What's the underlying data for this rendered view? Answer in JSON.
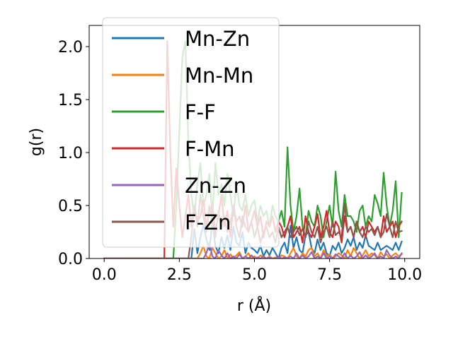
{
  "chart_data": {
    "type": "line",
    "xlabel": "r (Å)",
    "ylabel": "g(r)",
    "xlim": [
      -0.5,
      10.5
    ],
    "ylim": [
      0.0,
      2.2
    ],
    "xticks": [
      0.0,
      2.5,
      5.0,
      7.5,
      10.0
    ],
    "xtick_labels": [
      "0.0",
      "2.5",
      "5.0",
      "7.5",
      "10.0"
    ],
    "yticks": [
      0.0,
      0.5,
      1.0,
      1.5,
      2.0
    ],
    "ytick_labels": [
      "0.0",
      "0.5",
      "1.0",
      "1.5",
      "2.0"
    ],
    "grid": false,
    "legend_position": "upper-left",
    "x_start": 0.0,
    "x_step": 0.1,
    "series": [
      {
        "name": "Mn-Zn",
        "color": "#1f77b4",
        "values": [
          0,
          0,
          0,
          0,
          0,
          0,
          0,
          0,
          0,
          0,
          0,
          0,
          0,
          0,
          0,
          0,
          0,
          0,
          0,
          0,
          0,
          0,
          0,
          0,
          0,
          0,
          0,
          0,
          0,
          0,
          0.28,
          0.05,
          0.2,
          0.32,
          0.18,
          0.08,
          0.35,
          0.12,
          0.05,
          0.2,
          0.1,
          0.22,
          0.08,
          0.3,
          0.15,
          0.12,
          0.25,
          0.05,
          0.15,
          0.1,
          0.08,
          0.05,
          0.12,
          0.02,
          0.08,
          0.03,
          0.1,
          0.05,
          0.0,
          0.1,
          0.15,
          0.05,
          0.31,
          0.1,
          0.2,
          0.08,
          0.05,
          0.22,
          0.25,
          0.1,
          0.05,
          0.18,
          0.08,
          0.15,
          0.05,
          0.02,
          0.12,
          0.08,
          0.15,
          0.05,
          0.1,
          0.18,
          0.12,
          0.2,
          0.08,
          0.15,
          0.1,
          0.22,
          0.12,
          0.1,
          0.08,
          0.15,
          0.08,
          0.1,
          0.12,
          0.1,
          0.08,
          0.15,
          0.08,
          0.16
        ]
      },
      {
        "name": "Mn-Mn",
        "color": "#ff7f0e",
        "values": [
          0,
          0,
          0,
          0,
          0,
          0,
          0,
          0,
          0,
          0,
          0,
          0,
          0,
          0,
          0,
          0,
          0,
          0,
          0,
          0,
          0,
          0,
          0,
          0,
          0,
          0,
          0,
          0,
          0,
          0,
          0,
          0,
          0.05,
          0.12,
          0.02,
          0.0,
          0.1,
          0.05,
          0.0,
          0.02,
          0.08,
          0.0,
          0.04,
          0.0,
          0.03,
          0.06,
          0.0,
          0.02,
          0.05,
          0.0,
          0.02,
          0.0,
          0.03,
          0.01,
          0.0,
          0.02,
          0.0,
          0.01,
          0.0,
          0.03,
          0.02,
          0.0,
          0.05,
          0.1,
          0.02,
          0.0,
          0.05,
          0.02,
          0.08,
          0.1,
          0.02,
          0.05,
          0.0,
          0.08,
          0.02,
          0.04,
          0.0,
          0.02,
          0.05,
          0.03,
          0.0,
          0.08,
          0.02,
          0.1,
          0.05,
          0.0,
          0.03,
          0.08,
          0.02,
          0.05,
          0.03,
          0.0,
          0.06,
          0.02,
          0.04,
          0.0,
          0.03,
          0.05,
          0.02,
          0.04
        ]
      },
      {
        "name": "F-F",
        "color": "#2ca02c",
        "values": [
          0,
          0,
          0,
          0,
          0,
          0,
          0,
          0,
          0,
          0,
          0,
          0,
          0,
          0,
          0,
          0,
          0,
          0,
          0,
          0,
          0,
          0,
          0,
          0,
          0.5,
          1.2,
          1.9,
          2.05,
          1.1,
          0.6,
          0.4,
          0.7,
          0.9,
          0.5,
          0.6,
          0.8,
          0.4,
          0.9,
          0.6,
          0.7,
          0.5,
          0.8,
          0.6,
          0.4,
          0.7,
          0.5,
          0.45,
          0.6,
          0.4,
          0.5,
          0.55,
          0.35,
          0.5,
          0.4,
          0.45,
          0.3,
          0.5,
          0.4,
          0.35,
          0.45,
          0.3,
          1.05,
          0.5,
          0.25,
          0.4,
          0.66,
          0.3,
          0.2,
          0.45,
          0.35,
          0.3,
          0.5,
          0.4,
          0.2,
          0.35,
          0.5,
          0.3,
          0.82,
          0.45,
          0.3,
          0.6,
          0.4,
          0.4,
          0.35,
          0.25,
          0.45,
          0.5,
          0.3,
          0.4,
          0.35,
          0.6,
          0.52,
          0.4,
          0.81,
          0.5,
          0.3,
          0.45,
          0.73,
          0.2,
          0.62
        ]
      },
      {
        "name": "F-Mn",
        "color": "#d62728",
        "values": [
          0,
          0,
          0,
          0,
          0,
          0,
          0,
          0,
          0,
          0,
          0,
          0,
          0,
          0,
          0,
          0,
          0,
          0,
          0,
          0,
          0,
          2.05,
          1.0,
          0.3,
          0.85,
          0.5,
          0.2,
          0.4,
          0.6,
          0.3,
          0.5,
          0.35,
          0.4,
          0.55,
          0.3,
          0.45,
          0.5,
          0.25,
          0.4,
          0.6,
          0.3,
          0.45,
          0.2,
          0.5,
          0.35,
          0.4,
          0.3,
          0.5,
          0.25,
          0.35,
          0.45,
          0.3,
          0.4,
          0.2,
          0.35,
          0.3,
          0.4,
          0.25,
          0.35,
          0.3,
          0.2,
          0.3,
          0.4,
          0.2,
          0.25,
          0.3,
          0.15,
          0.4,
          0.25,
          0.2,
          0.3,
          0.42,
          0.2,
          0.3,
          0.45,
          0.25,
          0.2,
          0.35,
          0.3,
          0.15,
          0.4,
          0.25,
          0.3,
          0.2,
          0.35,
          0.25,
          0.3,
          0.2,
          0.35,
          0.3,
          0.25,
          0.3,
          0.2,
          0.4,
          0.25,
          0.3,
          0.35,
          0.2,
          0.3,
          0.35
        ]
      },
      {
        "name": "Zn-Zn",
        "color": "#9467bd",
        "values": [
          0,
          0,
          0,
          0,
          0,
          0,
          0,
          0,
          0,
          0,
          0,
          0,
          0,
          0,
          0,
          0,
          0,
          0,
          0,
          0,
          0,
          0,
          0,
          0,
          0,
          0,
          0,
          0,
          0,
          0,
          0,
          0,
          0,
          0,
          0.05,
          0.15,
          0.02,
          0.0,
          0.08,
          0.03,
          0.0,
          0.05,
          0.0,
          0.02,
          0.0,
          0.04,
          0.0,
          0.02,
          0.0,
          0.03,
          0.0,
          0.01,
          0.0,
          0.02,
          0.0,
          0.01,
          0.0,
          0.0,
          0.02,
          0.0,
          0.01,
          0.0,
          0.02,
          0.0,
          0.05,
          0.0,
          0.03,
          0.0,
          0.02,
          0.06,
          0.0,
          0.02,
          0.0,
          0.05,
          0.0,
          0.02,
          0.0,
          0.04,
          0.02,
          0.0,
          0.05,
          0.0,
          0.03,
          0.0,
          0.02,
          0.06,
          0.0,
          0.03,
          0.0,
          0.02,
          0.05,
          0.0,
          0.02,
          0.0,
          0.08,
          0.03,
          0.0,
          0.02,
          0.0,
          0.05
        ]
      },
      {
        "name": "F-Zn",
        "color": "#8c564b",
        "values": [
          0,
          0,
          0,
          0,
          0,
          0,
          0,
          0,
          0,
          0,
          0,
          0,
          0,
          0,
          0,
          0,
          0,
          0,
          0,
          0,
          0,
          0,
          0,
          0,
          0,
          0,
          0,
          0,
          0,
          0.2,
          0.5,
          0.3,
          0.6,
          0.4,
          0.25,
          0.5,
          0.35,
          0.2,
          0.45,
          0.3,
          0.4,
          0.25,
          0.35,
          0.5,
          0.3,
          0.2,
          0.4,
          0.3,
          0.25,
          0.35,
          0.2,
          0.3,
          0.15,
          0.25,
          0.3,
          0.2,
          0.25,
          0.15,
          0.3,
          0.2,
          0.25,
          0.3,
          0.2,
          0.25,
          0.3,
          0.22,
          0.28,
          0.2,
          0.35,
          0.25,
          0.2,
          0.3,
          0.15,
          0.25,
          0.3,
          0.2,
          0.35,
          0.22,
          0.25,
          0.2,
          0.52,
          0.25,
          0.3,
          0.2,
          0.35,
          0.25,
          0.2,
          0.3,
          0.25,
          0.28,
          0.22,
          0.3,
          0.2,
          0.25,
          0.42,
          0.3,
          0.2,
          0.35,
          0.25,
          0.26
        ]
      }
    ]
  }
}
